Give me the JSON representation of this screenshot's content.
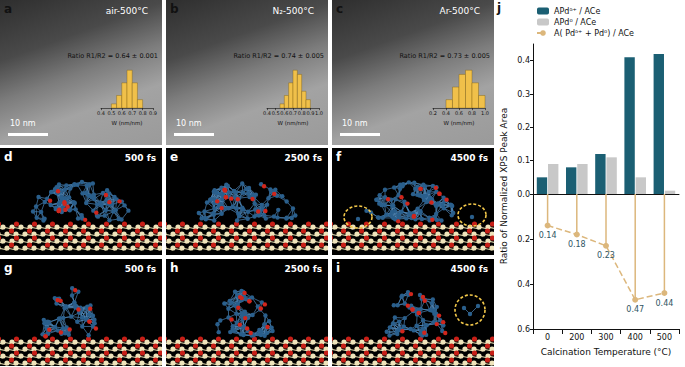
{
  "panels": [
    {
      "letter": "a",
      "caption": "air-500°C",
      "scale_bar": "10 nm",
      "ratio": "Ratio R1/R2 = 0.64 ± 0.001",
      "inset": {
        "type": "histogram",
        "xlabel": "W (nm/nm)",
        "xlim": [
          0.4,
          0.9
        ],
        "xticks": [
          0.4,
          0.5,
          0.6,
          0.7,
          0.8,
          0.9
        ],
        "bins": [
          0.5,
          0.55,
          0.6,
          0.65,
          0.7,
          0.75,
          0.8
        ],
        "counts": [
          1,
          3,
          6,
          9,
          6,
          2
        ],
        "color": "#f0c04a"
      }
    },
    {
      "letter": "b",
      "caption": "N₂-500°C",
      "scale_bar": "10 nm",
      "ratio": "Ratio R1/R2 = 0.74 ± 0.005",
      "inset": {
        "type": "histogram",
        "xlabel": "W (nm/nm)",
        "xlim": [
          0.4,
          1
        ],
        "xticks": [
          0.4,
          0.5,
          0.6,
          0.7,
          0.8,
          0.9,
          {
            "value": 1,
            "label": "1.0"
          }
        ],
        "bins": [
          0.55,
          0.6,
          0.65,
          0.7,
          0.75,
          0.8,
          0.85,
          0.9
        ],
        "counts": [
          1,
          3,
          6,
          9,
          8,
          4,
          2
        ],
        "color": "#f0c04a"
      }
    },
    {
      "letter": "c",
      "caption": "Ar-500°C",
      "scale_bar": "10 nm",
      "ratio": "Ratio R1/R2 = 0.73 ± 0.005",
      "inset": {
        "type": "histogram",
        "xlabel": "W (nm/nm)",
        "xlim": [
          0.2,
          1
        ],
        "xticks": [
          0.2,
          0.4,
          0.6,
          0.8,
          {
            "value": 1,
            "label": "1.0"
          }
        ],
        "bins": [
          0.4,
          0.5,
          0.6,
          0.7,
          0.8,
          0.9,
          1
        ],
        "counts": [
          2,
          5,
          8,
          9,
          6,
          3
        ],
        "color": "#f0c04a"
      }
    }
  ],
  "snapshots": [
    {
      "letter": "d",
      "time": "500 fs"
    },
    {
      "letter": "e",
      "time": "2500 fs"
    },
    {
      "letter": "f",
      "time": "4500 fs"
    },
    {
      "letter": "g",
      "time": "500 fs"
    },
    {
      "letter": "h",
      "time": "2500 fs"
    },
    {
      "letter": "i",
      "time": "4500 fs"
    }
  ],
  "chart_data": [
    {
      "panel": "j",
      "type": "bar",
      "ylabel": "Ratio of Normalized XPS Peak Area",
      "categories": [
        "0",
        "200",
        "300",
        "400",
        "500"
      ],
      "series": [
        {
          "name": "APdᵟ⁺ / ACe",
          "color": "#1b5f73",
          "values": [
            0.05,
            0.08,
            0.12,
            0.41,
            0.42
          ]
        },
        {
          "name": "APd⁰ / ACe",
          "color": "#c8c8c8",
          "values": [
            0.09,
            0.09,
            0.11,
            0.05,
            0.01
          ]
        }
      ],
      "ylim": [
        0,
        0.45
      ],
      "yticks": [
        {
          "value": 0,
          "label": "0.0"
        },
        0.1,
        0.2,
        0.3,
        0.4
      ],
      "tick_labels": "y",
      "legend": "top-left"
    },
    {
      "type": "line",
      "xlabel": "Calcination Temperature (°C)",
      "categories": [
        "0",
        "200",
        "300",
        "400",
        "500"
      ],
      "series": [
        {
          "name": "A( Pdᵟ⁺ + Pd⁰) / ACe",
          "color": "#dcb77c",
          "values": [
            0.14,
            0.18,
            0.23,
            0.47,
            0.44
          ],
          "marker": "circle",
          "line_style": "dashed"
        }
      ],
      "ylim": [
        0.6,
        0
      ],
      "yticks": [
        0.2,
        0.4,
        0.6
      ],
      "data_labels": true
    }
  ]
}
